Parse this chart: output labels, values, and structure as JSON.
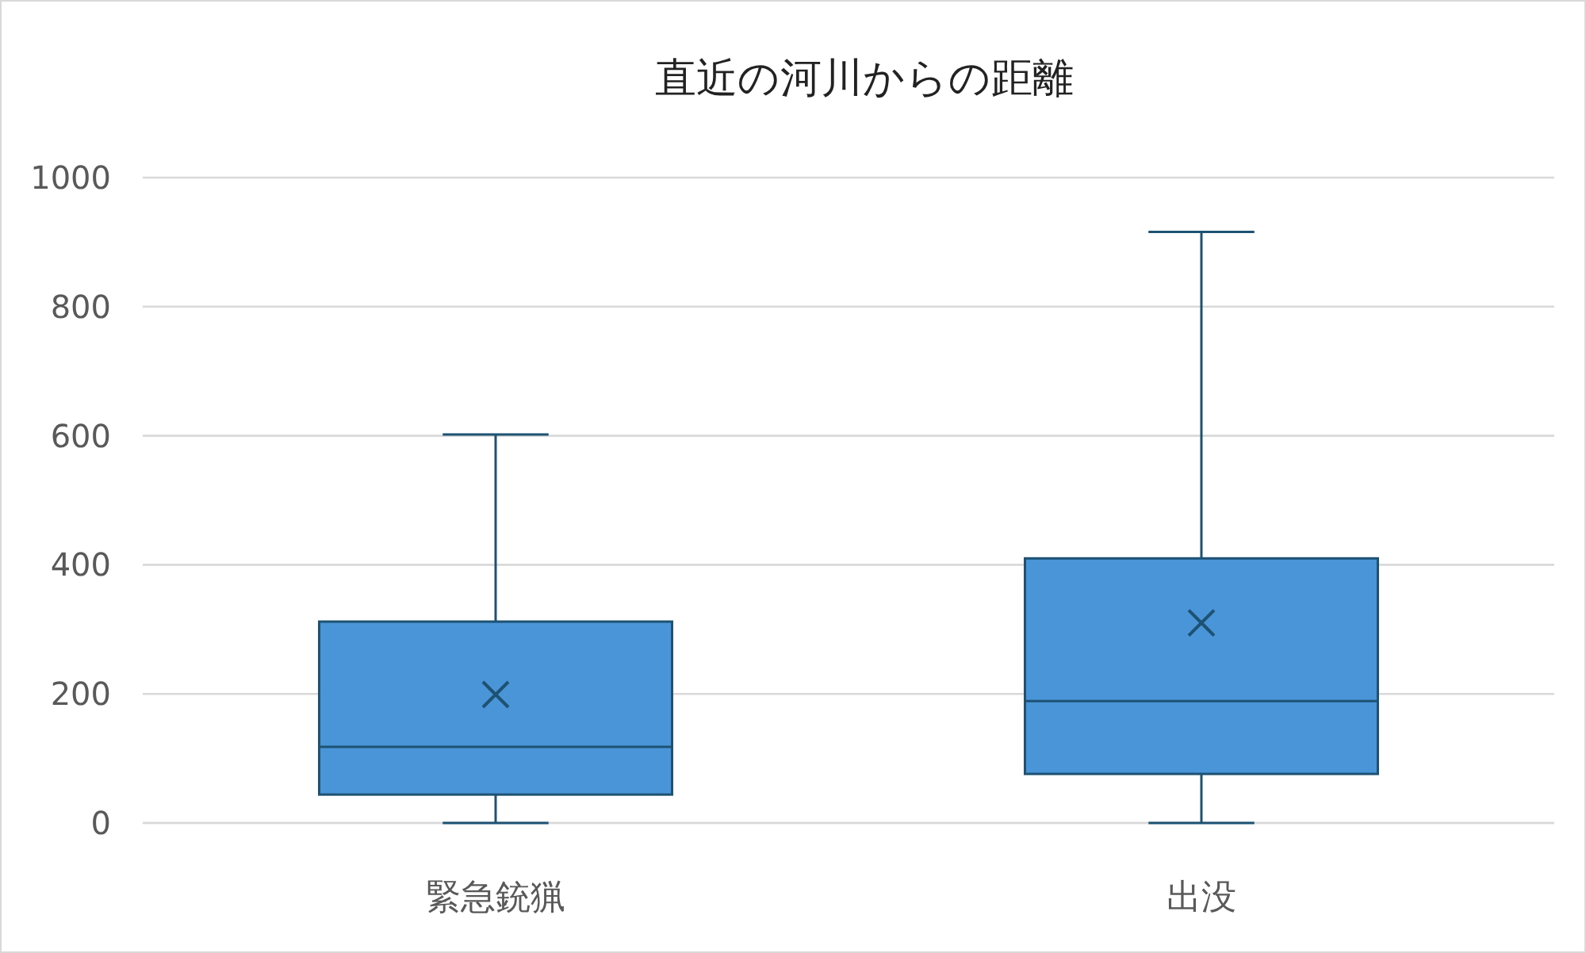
{
  "chart_data": {
    "type": "box",
    "title": "直近の河川からの距離",
    "categories": [
      "緊急銃猟",
      "出没"
    ],
    "boxes": [
      {
        "low": 0,
        "q1": 44,
        "median": 118,
        "q3": 312,
        "high": 602,
        "mean": 199
      },
      {
        "low": 0,
        "q1": 76,
        "median": 189,
        "q3": 410,
        "high": 916,
        "mean": 310
      }
    ],
    "color": "#4a94d8",
    "ylim": [
      0,
      1000
    ],
    "yticks": [
      0,
      200,
      400,
      600,
      800,
      1000
    ],
    "grid": "y",
    "marker": "cross"
  }
}
